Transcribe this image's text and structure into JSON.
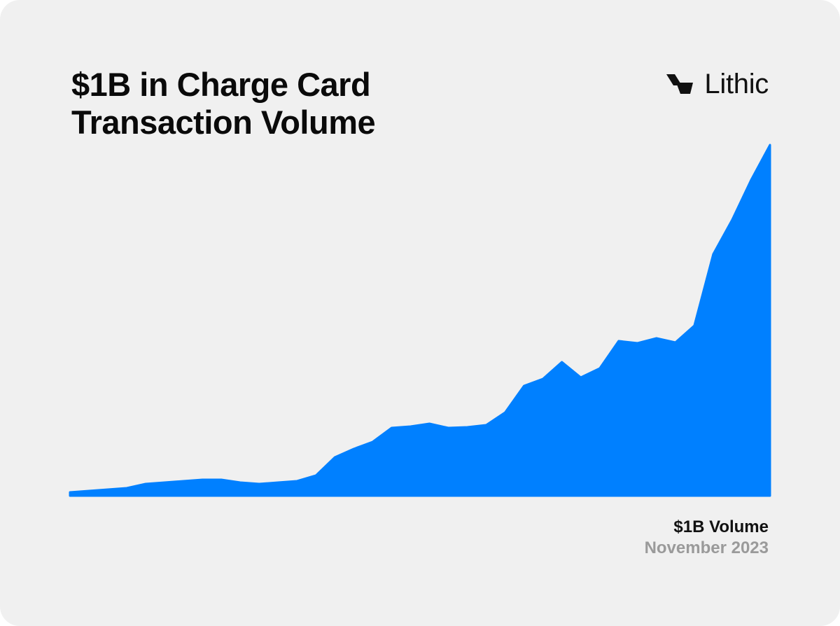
{
  "header": {
    "title_line1": "$1B in Charge Card",
    "title_line2": "Transaction Volume"
  },
  "brand": {
    "name": "Lithic",
    "logo_icon": "lithic-logo-icon"
  },
  "footer": {
    "label": "$1B Volume",
    "date": "November 2023"
  },
  "colors": {
    "area": "#0080ff",
    "background": "#f0f0f0",
    "text": "#0a0a0a",
    "muted": "#9a9a9a"
  },
  "chart_data": {
    "type": "area",
    "title": "$1B in Charge Card Transaction Volume",
    "xlabel": "",
    "ylabel": "",
    "grid": false,
    "legend": "none",
    "axes_visible": false,
    "ylim": [
      0,
      100
    ],
    "series": [
      {
        "values": [
          0.8,
          1.2,
          1.6,
          2.0,
          3.2,
          3.6,
          4.0,
          4.4,
          4.4,
          3.6,
          3.2,
          3.6,
          4.0,
          5.6,
          10.8,
          13.2,
          15.2,
          19.2,
          19.6,
          20.4,
          19.2,
          19.4,
          20.0,
          23.6,
          31.2,
          33.2,
          38.0,
          33.6,
          36.2,
          44.0,
          43.4,
          44.8,
          43.6,
          48.4,
          68.8,
          78.6,
          90.0,
          100.0
        ]
      }
    ]
  }
}
